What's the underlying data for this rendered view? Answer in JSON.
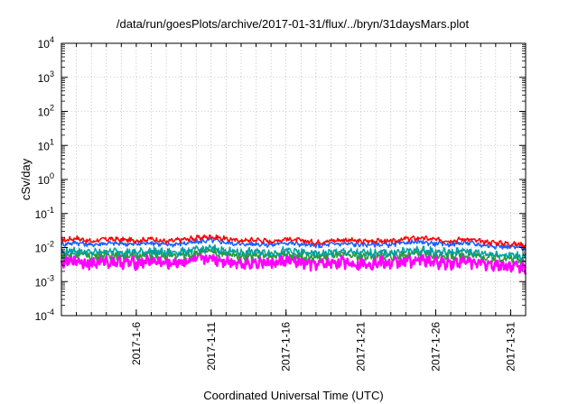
{
  "chart_data": {
    "type": "line",
    "title": "/data/run/goesPlots/archive/2017-01-31/flux/../bryn/31daysMars.plot",
    "xlabel": "Coordinated Universal Time (UTC)",
    "ylabel": "cSv/day",
    "yscale": "log",
    "ylim": [
      0.0001,
      10000
    ],
    "xlim": [
      "2017-01-01",
      "2017-02-01"
    ],
    "grid": true,
    "x_ticks": [
      "2017-1-6",
      "2017-1-11",
      "2017-1-16",
      "2017-1-21",
      "2017-1-26",
      "2017-1-31"
    ],
    "y_ticks": [
      {
        "base": "10",
        "exp": "-4",
        "value": 0.0001
      },
      {
        "base": "10",
        "exp": "-3",
        "value": 0.001
      },
      {
        "base": "10",
        "exp": "-2",
        "value": 0.01
      },
      {
        "base": "10",
        "exp": "-1",
        "value": 0.1
      },
      {
        "base": "10",
        "exp": "0",
        "value": 1
      },
      {
        "base": "10",
        "exp": "1",
        "value": 10
      },
      {
        "base": "10",
        "exp": "2",
        "value": 100
      },
      {
        "base": "10",
        "exp": "3",
        "value": 1000
      },
      {
        "base": "10",
        "exp": "4",
        "value": 10000
      }
    ],
    "x": [
      "2017-01-01",
      "2017-01-02",
      "2017-01-03",
      "2017-01-04",
      "2017-01-05",
      "2017-01-06",
      "2017-01-07",
      "2017-01-08",
      "2017-01-09",
      "2017-01-10",
      "2017-01-11",
      "2017-01-12",
      "2017-01-13",
      "2017-01-14",
      "2017-01-15",
      "2017-01-16",
      "2017-01-17",
      "2017-01-18",
      "2017-01-19",
      "2017-01-20",
      "2017-01-21",
      "2017-01-22",
      "2017-01-23",
      "2017-01-24",
      "2017-01-25",
      "2017-01-26",
      "2017-01-27",
      "2017-01-28",
      "2017-01-29",
      "2017-01-30",
      "2017-01-31",
      "2017-02-01"
    ],
    "series": [
      {
        "color": "#ff0000",
        "values": [
          0.016,
          0.019,
          0.015,
          0.018,
          0.017,
          0.016,
          0.018,
          0.015,
          0.017,
          0.019,
          0.021,
          0.018,
          0.016,
          0.017,
          0.015,
          0.018,
          0.016,
          0.014,
          0.016,
          0.017,
          0.015,
          0.016,
          0.015,
          0.018,
          0.019,
          0.017,
          0.016,
          0.018,
          0.015,
          0.014,
          0.013,
          0.012
        ]
      },
      {
        "color": "#1a5fff",
        "values": [
          0.0125,
          0.014,
          0.012,
          0.0135,
          0.013,
          0.0125,
          0.014,
          0.012,
          0.013,
          0.0145,
          0.0165,
          0.014,
          0.0125,
          0.013,
          0.012,
          0.014,
          0.0125,
          0.011,
          0.0125,
          0.013,
          0.012,
          0.0125,
          0.012,
          0.014,
          0.0145,
          0.013,
          0.0125,
          0.014,
          0.012,
          0.011,
          0.0105,
          0.0095
        ]
      },
      {
        "color": "#00a0a0",
        "values": [
          0.0072,
          0.0082,
          0.007,
          0.0078,
          0.0075,
          0.0072,
          0.008,
          0.007,
          0.0075,
          0.0084,
          0.0095,
          0.008,
          0.0072,
          0.0075,
          0.007,
          0.008,
          0.0072,
          0.0064,
          0.0072,
          0.0075,
          0.0068,
          0.0072,
          0.007,
          0.008,
          0.0083,
          0.0075,
          0.0072,
          0.008,
          0.0068,
          0.0064,
          0.006,
          0.0055
        ]
      },
      {
        "color": "#2a9a3a",
        "values": [
          0.0058,
          0.0066,
          0.0056,
          0.0063,
          0.006,
          0.0058,
          0.0064,
          0.0056,
          0.006,
          0.0068,
          0.0076,
          0.0064,
          0.0058,
          0.006,
          0.0056,
          0.0064,
          0.0058,
          0.0051,
          0.0058,
          0.006,
          0.0055,
          0.0058,
          0.0056,
          0.0064,
          0.0067,
          0.006,
          0.0058,
          0.0064,
          0.0055,
          0.0051,
          0.0048,
          0.0044
        ]
      },
      {
        "color": "#ff00ff",
        "values": [
          0.0036,
          0.0042,
          0.0034,
          0.004,
          0.0038,
          0.0036,
          0.0041,
          0.0034,
          0.0038,
          0.0043,
          0.0049,
          0.0041,
          0.0036,
          0.0038,
          0.0034,
          0.0041,
          0.0036,
          0.0031,
          0.0036,
          0.0038,
          0.0034,
          0.0036,
          0.0034,
          0.0041,
          0.0043,
          0.0038,
          0.0036,
          0.0041,
          0.0034,
          0.0031,
          0.0029,
          0.0026
        ]
      }
    ]
  }
}
